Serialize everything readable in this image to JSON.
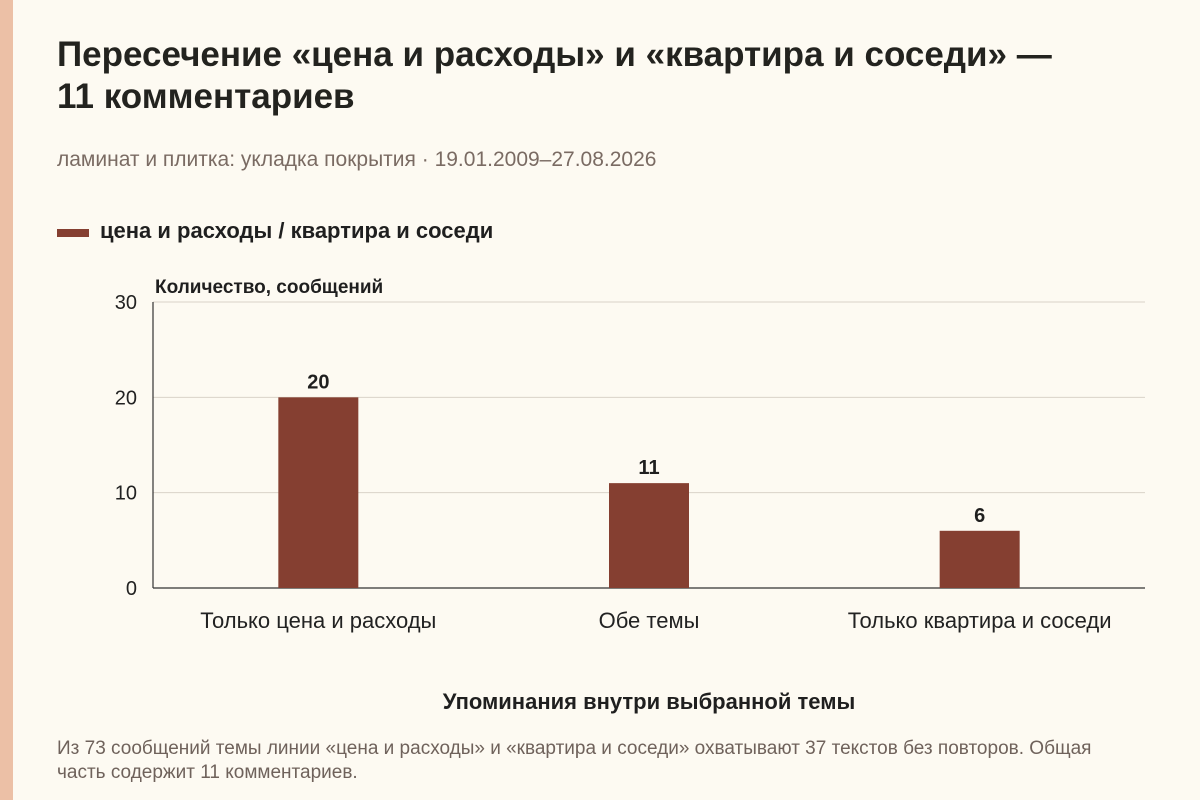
{
  "colors": {
    "background": "#fdfaf2",
    "accent_strip": "#ecc0a6",
    "bar": "#853f31",
    "gridline": "#d9d3c8",
    "axis": "#333333"
  },
  "title": "Пересечение «цена и расходы» и «квартира и соседи» — 11 комментариев",
  "subtitle": "ламинат и плитка: укладка покрытия · 19.01.2009–27.08.2026",
  "footnote": "Из 73 сообщений темы линии «цена и расходы» и «квартира и соседи» охватывают 37 текстов без повторов. Общая часть содержит 11 комментариев.",
  "chart_data": {
    "type": "bar",
    "legend": {
      "entries": [
        "цена и расходы / квартира и соседи"
      ],
      "placement": "top-left"
    },
    "ylabel": "Количество, сообщений",
    "xlabel": "Упоминания внутри выбранной темы",
    "categories": [
      "Только цена и расходы",
      "Обе темы",
      "Только квартира и соседи"
    ],
    "series": [
      {
        "name": "цена и расходы / квартира и соседи",
        "values": [
          20,
          11,
          6
        ]
      }
    ],
    "ylim": [
      0,
      30
    ],
    "yticks": [
      0,
      10,
      20,
      30
    ],
    "grid": true
  }
}
